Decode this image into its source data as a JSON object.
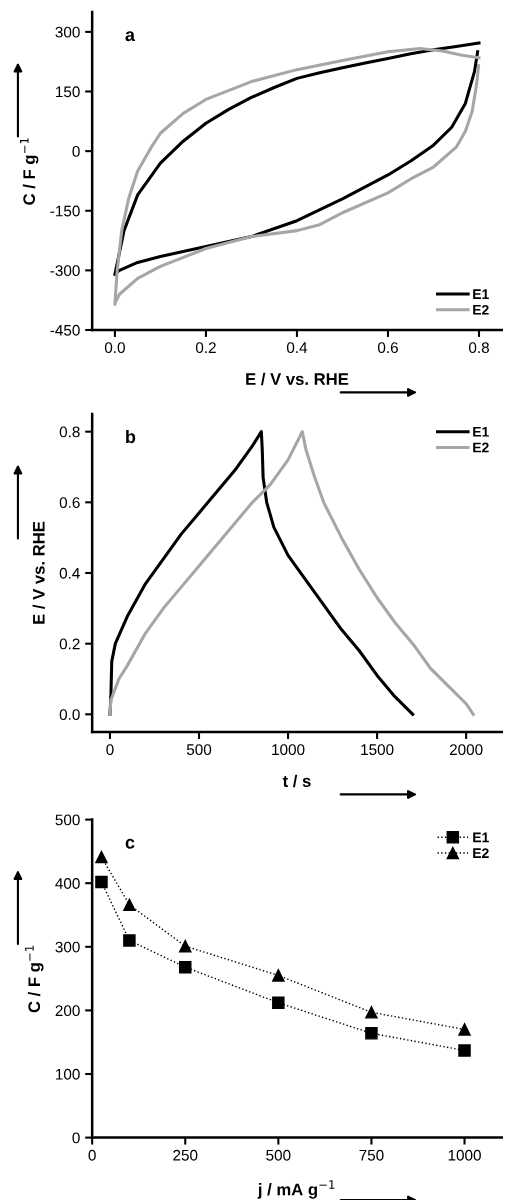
{
  "chart_data": [
    {
      "type": "line",
      "annotations": [
        "a"
      ],
      "xlabel": "E / V vs. RHE",
      "ylabel": "C / F g$^{−1}$",
      "xlim": [
        -0.05,
        0.85
      ],
      "ylim": [
        -450,
        350
      ],
      "xticks": [
        {
          "value": 0,
          "label": "0.0"
        },
        {
          "value": 0.2,
          "label": "0.2"
        },
        {
          "value": 0.4,
          "label": "0.4"
        },
        {
          "value": 0.6,
          "label": "0.6"
        },
        {
          "value": 0.8,
          "label": "0.8"
        }
      ],
      "yticks": [
        {
          "value": -450,
          "label": "-450"
        },
        {
          "value": -300,
          "label": "-300"
        },
        {
          "value": -150,
          "label": "-150"
        },
        0,
        150,
        300
      ],
      "legend": "bottom right",
      "grid": false,
      "marker": "none",
      "line_style": "solid",
      "series": [
        {
          "name": "E1",
          "color": "#000000",
          "x": [
            0,
            0.02,
            0.05,
            0.1,
            0.15,
            0.2,
            0.25,
            0.3,
            0.35,
            0.4,
            0.45,
            0.5,
            0.55,
            0.6,
            0.65,
            0.7,
            0.75,
            0.8
          ],
          "values": [
            -310,
            -200,
            -110,
            -30,
            25,
            70,
            105,
            135,
            160,
            183,
            197,
            210,
            222,
            233,
            245,
            255,
            263,
            272
          ]
        },
        {
          "color": "#000000",
          "x": [
            0.003,
            0.01,
            0.05,
            0.1,
            0.2,
            0.3,
            0.4,
            0.5,
            0.6,
            0.65,
            0.7,
            0.74,
            0.77,
            0.79,
            0.797
          ],
          "values": [
            -306,
            -300,
            -280,
            -265,
            -240,
            -215,
            -175,
            -120,
            -60,
            -25,
            15,
            60,
            120,
            200,
            250
          ]
        },
        {
          "name": "E2",
          "color": "#a6a6a6",
          "x": [
            0,
            0.005,
            0.015,
            0.03,
            0.05,
            0.08,
            0.1,
            0.15,
            0.2,
            0.3,
            0.4,
            0.5,
            0.6,
            0.67,
            0.72,
            0.76,
            0.8
          ],
          "values": [
            -385,
            -300,
            -200,
            -120,
            -50,
            10,
            45,
            95,
            130,
            175,
            205,
            228,
            250,
            258,
            252,
            242,
            235
          ]
        },
        {
          "color": "#a6a6a6",
          "x": [
            0.002,
            0.01,
            0.05,
            0.1,
            0.2,
            0.3,
            0.4,
            0.45,
            0.5,
            0.6,
            0.65,
            0.7,
            0.75,
            0.77,
            0.785,
            0.795,
            0.799
          ],
          "values": [
            -378,
            -360,
            -320,
            -290,
            -245,
            -215,
            -200,
            -185,
            -155,
            -105,
            -70,
            -40,
            10,
            50,
            100,
            170,
            215
          ]
        }
      ]
    },
    {
      "type": "line",
      "annotations": [
        "b"
      ],
      "xlabel": "t / s",
      "ylabel": "E / V vs. RHE",
      "xlim": [
        -100,
        2200
      ],
      "ylim": [
        -0.05,
        0.85
      ],
      "xticks": [
        0,
        500,
        1000,
        1500,
        2000
      ],
      "yticks": [
        {
          "value": 0,
          "label": "0.0"
        },
        {
          "value": 0.2,
          "label": "0.2"
        },
        {
          "value": 0.4,
          "label": "0.4"
        },
        {
          "value": 0.6,
          "label": "0.6"
        },
        {
          "value": 0.8,
          "label": "0.8"
        }
      ],
      "legend": "top right",
      "grid": false,
      "marker": "none",
      "line_style": "solid",
      "series": [
        {
          "name": "E1",
          "color": "#000000",
          "x": [
            0,
            5,
            10,
            30,
            100,
            200,
            300,
            400,
            500,
            600,
            700,
            800,
            850,
            855,
            860,
            880,
            920,
            1000,
            1100,
            1200,
            1300,
            1400,
            1500,
            1600,
            1700
          ],
          "values": [
            0,
            0.05,
            0.15,
            0.2,
            0.28,
            0.37,
            0.44,
            0.51,
            0.57,
            0.63,
            0.69,
            0.76,
            0.8,
            0.75,
            0.67,
            0.6,
            0.53,
            0.45,
            0.38,
            0.31,
            0.24,
            0.18,
            0.11,
            0.05,
            0
          ]
        },
        {
          "name": "E2",
          "color": "#a6a6a6",
          "x": [
            0,
            5,
            50,
            100,
            200,
            300,
            400,
            500,
            600,
            700,
            800,
            900,
            1000,
            1080,
            1100,
            1150,
            1200,
            1300,
            1400,
            1500,
            1600,
            1700,
            1800,
            1900,
            2000,
            2040
          ],
          "values": [
            0,
            0.04,
            0.1,
            0.14,
            0.23,
            0.3,
            0.36,
            0.42,
            0.48,
            0.54,
            0.6,
            0.65,
            0.72,
            0.8,
            0.75,
            0.67,
            0.6,
            0.5,
            0.41,
            0.33,
            0.26,
            0.2,
            0.13,
            0.08,
            0.03,
            0
          ]
        }
      ]
    },
    {
      "type": "line",
      "annotations": [
        "c"
      ],
      "xlabel": "j / mA g$^{−1}$",
      "ylabel": "C / F g$^{−1}$",
      "xlim": [
        0,
        1100
      ],
      "ylim": [
        0,
        500
      ],
      "xticks": [
        0,
        250,
        500,
        750,
        1000
      ],
      "yticks": [
        0,
        100,
        200,
        300,
        400,
        500
      ],
      "legend": "top right",
      "grid": false,
      "line_style": "dotted",
      "x": [
        25,
        100,
        250,
        500,
        750,
        1000
      ],
      "series": [
        {
          "name": "E1",
          "color": "#000000",
          "marker": "square",
          "values": [
            402,
            310,
            268,
            212,
            164,
            137
          ]
        },
        {
          "name": "E2",
          "color": "#000000",
          "marker": "triangle",
          "values": [
            441,
            366,
            301,
            255,
            197,
            170
          ]
        }
      ]
    }
  ]
}
